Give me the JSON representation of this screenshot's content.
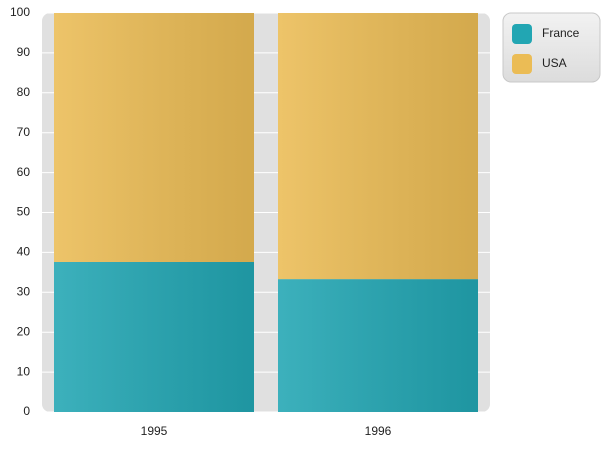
{
  "chart_data": {
    "type": "bar",
    "stacked": true,
    "categories": [
      "1995",
      "1996"
    ],
    "series": [
      {
        "name": "France",
        "color": "#22a6b3",
        "values": [
          37.6,
          33.3
        ]
      },
      {
        "name": "USA",
        "color": "#ebbc55",
        "values": [
          62.4,
          66.7
        ]
      }
    ],
    "ylim": [
      0,
      100
    ],
    "yticks": [
      0,
      10,
      20,
      30,
      40,
      50,
      60,
      70,
      80,
      90,
      100
    ],
    "grid": true,
    "legend": "top-right"
  }
}
